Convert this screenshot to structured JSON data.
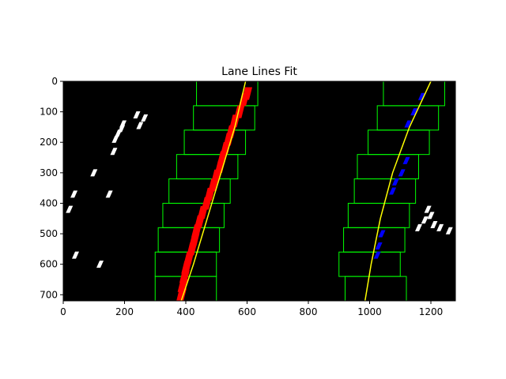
{
  "chart_data": {
    "type": "scatter",
    "title": "Lane Lines Fit",
    "xlabel": "",
    "ylabel": "",
    "xlim": [
      0,
      1280
    ],
    "ylim": [
      720,
      0
    ],
    "x_ticks": [
      0,
      200,
      400,
      600,
      800,
      1000,
      1200
    ],
    "y_ticks": [
      0,
      100,
      200,
      300,
      400,
      500,
      600,
      700
    ],
    "background": "#000000",
    "grid": false,
    "series": [
      {
        "role": "left-lane-pixels",
        "color": "#ff0000",
        "points": [
          [
            600,
            40
          ],
          [
            590,
            60
          ],
          [
            575,
            100
          ],
          [
            560,
            130
          ],
          [
            548,
            165
          ],
          [
            540,
            190
          ],
          [
            530,
            220
          ],
          [
            520,
            250
          ],
          [
            512,
            280
          ],
          [
            500,
            310
          ],
          [
            490,
            340
          ],
          [
            478,
            370
          ],
          [
            468,
            400
          ],
          [
            455,
            430
          ],
          [
            445,
            460
          ],
          [
            435,
            490
          ],
          [
            428,
            520
          ],
          [
            420,
            550
          ],
          [
            410,
            580
          ],
          [
            402,
            610
          ],
          [
            396,
            640
          ],
          [
            390,
            670
          ],
          [
            386,
            700
          ]
        ]
      },
      {
        "role": "right-lane-pixels",
        "color": "#0000ff",
        "points": [
          [
            1170,
            50
          ],
          [
            1145,
            100
          ],
          [
            1125,
            140
          ],
          [
            1120,
            260
          ],
          [
            1105,
            300
          ],
          [
            1085,
            330
          ],
          [
            1075,
            360
          ],
          [
            1040,
            500
          ],
          [
            1030,
            540
          ],
          [
            1025,
            570
          ]
        ]
      },
      {
        "role": "noise-pixels",
        "color": "#ffffff",
        "points": [
          [
            240,
            110
          ],
          [
            265,
            120
          ],
          [
            250,
            145
          ],
          [
            195,
            140
          ],
          [
            190,
            155
          ],
          [
            180,
            170
          ],
          [
            170,
            190
          ],
          [
            165,
            230
          ],
          [
            100,
            300
          ],
          [
            35,
            370
          ],
          [
            150,
            370
          ],
          [
            20,
            420
          ],
          [
            40,
            570
          ],
          [
            120,
            600
          ],
          [
            1190,
            420
          ],
          [
            1200,
            440
          ],
          [
            1180,
            455
          ],
          [
            1210,
            470
          ],
          [
            1230,
            480
          ],
          [
            1160,
            480
          ],
          [
            1260,
            490
          ]
        ]
      }
    ],
    "fits": [
      {
        "role": "left-fit",
        "color": "#ffff00",
        "x": [
          595,
          560,
          515,
          470,
          425,
          385
        ],
        "y": [
          0,
          150,
          300,
          450,
          600,
          720
        ]
      },
      {
        "role": "right-fit",
        "color": "#ffff00",
        "x": [
          1200,
          1130,
          1075,
          1035,
          1005,
          985
        ],
        "y": [
          0,
          150,
          300,
          450,
          600,
          720
        ]
      }
    ],
    "windows": {
      "color": "#00ff00",
      "height": 80,
      "left": [
        [
          300,
          640
        ],
        [
          300,
          560
        ],
        [
          310,
          480
        ],
        [
          325,
          400
        ],
        [
          345,
          320
        ],
        [
          370,
          240
        ],
        [
          395,
          160
        ],
        [
          425,
          80
        ],
        [
          435,
          0
        ]
      ],
      "right": [
        [
          920,
          640
        ],
        [
          900,
          560
        ],
        [
          915,
          480
        ],
        [
          930,
          400
        ],
        [
          950,
          320
        ],
        [
          960,
          240
        ],
        [
          995,
          160
        ],
        [
          1025,
          80
        ],
        [
          1045,
          0
        ]
      ],
      "width": 200
    }
  }
}
